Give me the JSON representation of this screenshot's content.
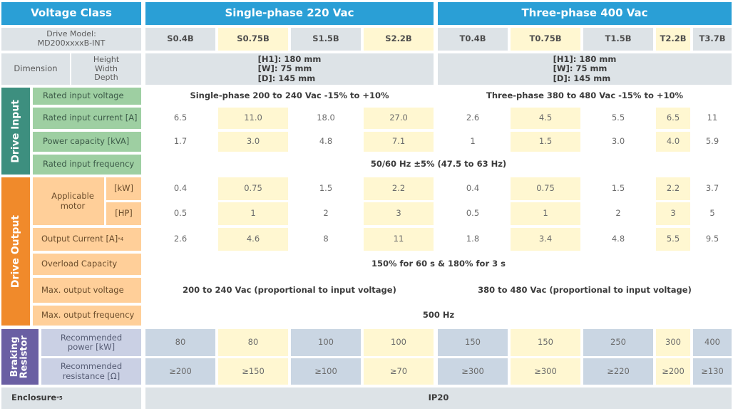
{
  "header": {
    "voltage_class": "Voltage Class",
    "single_phase": "Single-phase 220 Vac",
    "three_phase": "Three-phase 400 Vac"
  },
  "model": {
    "label_line1": "Drive Model:",
    "label_line2": "MD200xxxxB-INT",
    "codes": [
      "S0.4B",
      "S0.75B",
      "S1.5B",
      "S2.2B",
      "T0.4B",
      "T0.75B",
      "T1.5B",
      "T2.2B",
      "T3.7B"
    ]
  },
  "dimension": {
    "label": "Dimension",
    "sub1": "Height",
    "sub2": "Width",
    "sub3": "Depth",
    "single": {
      "h": "[H1]: 180 mm",
      "w": "[W]: 75 mm",
      "d": "[D]: 145 mm"
    },
    "three": {
      "h": "[H1]: 180 mm",
      "w": "[W]: 75 mm",
      "d": "[D]: 145 mm"
    }
  },
  "drive_input": {
    "group": "Drive Input",
    "rated_input_voltage": {
      "label": "Rated input voltage",
      "single": "Single-phase 200 to 240 Vac -15% to +10%",
      "three": "Three-phase 380 to 480 Vac -15% to +10%"
    },
    "rated_input_current": {
      "label": "Rated input current [A]",
      "values": [
        "6.5",
        "11.0",
        "18.0",
        "27.0",
        "2.6",
        "4.5",
        "5.5",
        "6.5",
        "11"
      ]
    },
    "power_capacity": {
      "label": "Power capacity [kVA]",
      "values": [
        "1.7",
        "3.0",
        "4.8",
        "7.1",
        "1",
        "1.5",
        "3.0",
        "4.0",
        "5.9"
      ]
    },
    "rated_input_frequency": {
      "label": "Rated input frequency",
      "value": "50/60 Hz ±5% (47.5 to 63 Hz)"
    }
  },
  "drive_output": {
    "group": "Drive Output",
    "applicable_motor": {
      "label": "Applicable motor",
      "kw_unit": "[kW]",
      "hp_unit": "[HP]",
      "kw": [
        "0.4",
        "0.75",
        "1.5",
        "2.2",
        "0.4",
        "0.75",
        "1.5",
        "2.2",
        "3.7"
      ],
      "hp": [
        "0.5",
        "1",
        "2",
        "3",
        "0.5",
        "1",
        "2",
        "3",
        "5"
      ]
    },
    "output_current": {
      "label": "Output Current [A]",
      "note": "*4",
      "values": [
        "2.6",
        "4.6",
        "8",
        "11",
        "1.8",
        "3.4",
        "4.8",
        "5.5",
        "9.5"
      ]
    },
    "overload_capacity": {
      "label": "Overload Capacity",
      "value": "150% for 60 s & 180% for 3 s"
    },
    "max_output_voltage": {
      "label": "Max. output voltage",
      "single": "200 to 240 Vac (proportional to input voltage)",
      "three": "380 to 480 Vac (proportional to input voltage)"
    },
    "max_output_frequency": {
      "label": "Max. output frequency",
      "value": "500 Hz"
    }
  },
  "braking_resistor": {
    "group_line1": "Braking",
    "group_line2": "Resistor",
    "power": {
      "label_line1": "Recommended",
      "label_line2": "power [kW]",
      "values": [
        "80",
        "80",
        "100",
        "100",
        "150",
        "150",
        "250",
        "300",
        "400"
      ]
    },
    "resistance": {
      "label_line1": "Recommended",
      "label_line2": "resistance [Ω]",
      "values": [
        "≥200",
        "≥150",
        "≥100",
        "≥70",
        "≥300",
        "≥300",
        "≥220",
        "≥200",
        "≥130"
      ]
    }
  },
  "enclosure": {
    "label": "Enclosure",
    "note": "*5",
    "value": "IP20"
  },
  "colors": {
    "header_blue": "#2a9fd6",
    "input_group": "#3d8f7f",
    "input_label": "#9ecfa2",
    "output_group": "#f08a2b",
    "output_label": "#ffcf99",
    "braking_group": "#6a5fa3",
    "braking_label": "#cad0e4",
    "highlight_yellow": "#fff7d1",
    "grey": "#dde3e7"
  }
}
